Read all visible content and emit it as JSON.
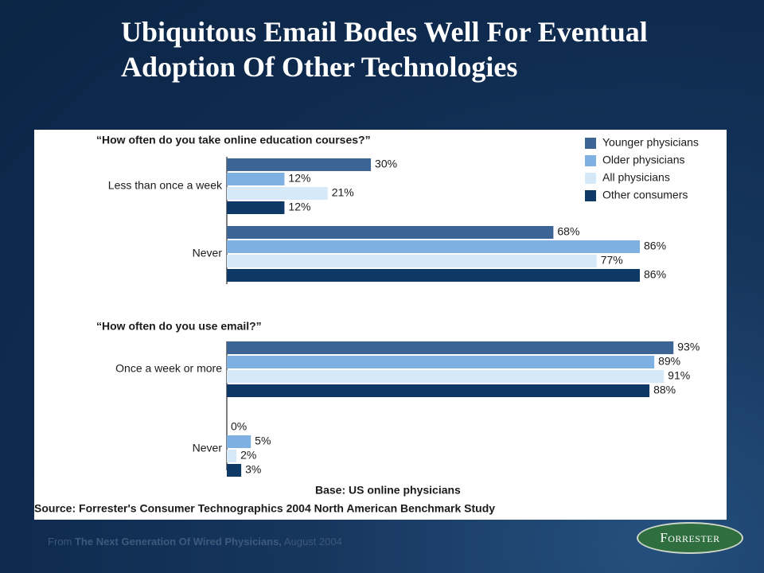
{
  "slide": {
    "title": "Ubiquitous Email Bodes Well For Eventual Adoption Of Other Technologies",
    "footer_prefix": "From",
    "footer_report": "The Next Generation Of Wired Physicians,",
    "footer_date": "August 2004",
    "logo_text": "Forrester"
  },
  "colors": {
    "Younger physicians": "#3c6595",
    "Older physicians": "#7fb0e2",
    "All physicians": "#d5e9f8",
    "Other consumers": "#0e3866"
  },
  "chart_data": {
    "type": "bar",
    "orientation": "horizontal",
    "legend": [
      "Younger physicians",
      "Older physicians",
      "All physicians",
      "Other consumers"
    ],
    "legend_position": "top-right",
    "base_note": "Base: US online physicians",
    "source": "Source: Forrester's Consumer Technographics 2004 North American Benchmark Study",
    "xlim": [
      0,
      100
    ],
    "grid": false,
    "panels": [
      {
        "question": "“How often do you take online education courses?”",
        "categories": [
          "Less than once a week",
          "Never"
        ],
        "series": [
          {
            "name": "Younger physicians",
            "values": [
              30,
              68
            ]
          },
          {
            "name": "Older physicians",
            "values": [
              12,
              86
            ]
          },
          {
            "name": "All physicians",
            "values": [
              21,
              77
            ]
          },
          {
            "name": "Other consumers",
            "values": [
              12,
              86
            ]
          }
        ]
      },
      {
        "question": "“How often do you use email?”",
        "categories": [
          "Once a week or more",
          "Never"
        ],
        "series": [
          {
            "name": "Younger physicians",
            "values": [
              93,
              0
            ]
          },
          {
            "name": "Older physicians",
            "values": [
              89,
              5
            ]
          },
          {
            "name": "All physicians",
            "values": [
              91,
              2
            ]
          },
          {
            "name": "Other consumers",
            "values": [
              88,
              3
            ]
          }
        ]
      }
    ]
  }
}
